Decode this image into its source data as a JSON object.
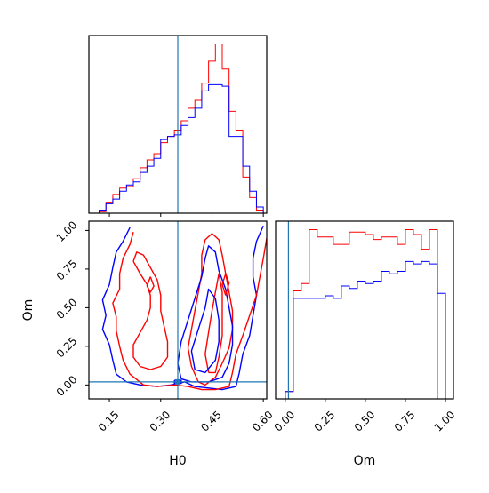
{
  "chart_data": {
    "type": "corner",
    "params": [
      "H0",
      "Om"
    ],
    "truths": {
      "H0": 0.35,
      "Om": 0.02
    },
    "colors": {
      "series_a": "#ff0000",
      "series_b": "#0000ff",
      "truth_line": "#1f77b4",
      "axes": "#000000"
    },
    "panels": [
      {
        "name": "hist-H0",
        "type": "histogram",
        "xlim": [
          0.09,
          0.61
        ],
        "bin_edges": [
          0.12,
          0.14,
          0.16,
          0.18,
          0.2,
          0.22,
          0.24,
          0.26,
          0.28,
          0.3,
          0.32,
          0.34,
          0.36,
          0.38,
          0.4,
          0.42,
          0.44,
          0.46,
          0.48,
          0.5,
          0.52,
          0.54,
          0.56,
          0.58,
          0.6
        ],
        "series": [
          {
            "color_key": "series_a",
            "counts": [
              1,
              7,
              12,
              16,
              17,
              22,
              29,
              34,
              38,
              45,
              49,
              53,
              59,
              67,
              72,
              83,
              97,
              108,
              92,
              65,
              53,
              23,
              10,
              2
            ]
          },
          {
            "color_key": "series_b",
            "counts": [
              2,
              6,
              9,
              14,
              18,
              20,
              26,
              30,
              35,
              47,
              49,
              50,
              56,
              61,
              67,
              78,
              82,
              82,
              81,
              49,
              49,
              30,
              14,
              4
            ]
          }
        ],
        "xticks": [
          0.15,
          0.3,
          0.45,
          0.6
        ]
      },
      {
        "name": "hist-Om",
        "type": "histogram",
        "xlim": [
          -0.06,
          1.05
        ],
        "bin_edges": [
          -0.05,
          0.0,
          0.05,
          0.1,
          0.15,
          0.2,
          0.25,
          0.3,
          0.35,
          0.4,
          0.45,
          0.5,
          0.55,
          0.6,
          0.65,
          0.7,
          0.75,
          0.8,
          0.85,
          0.9,
          0.95,
          1.0,
          1.05
        ],
        "series": [
          {
            "color_key": "series_a",
            "counts": [
              0,
              3,
              44,
              47,
              69,
              66,
              66,
              63,
              63,
              68,
              68,
              67,
              65,
              66,
              66,
              63,
              69,
              67,
              61,
              69,
              0,
              0
            ]
          },
          {
            "color_key": "series_b",
            "counts": [
              0,
              3,
              41,
              41,
              41,
              41,
              42,
              41,
              46,
              45,
              48,
              47,
              48,
              52,
              51,
              52,
              56,
              55,
              56,
              55,
              43,
              0
            ]
          }
        ],
        "xticks": [
          0.0,
          0.25,
          0.5,
          0.75,
          1.0
        ],
        "xlabel": "Om"
      },
      {
        "name": "contour-H0-Om",
        "type": "contour",
        "xlim": [
          0.09,
          0.61
        ],
        "ylim": [
          -0.09,
          1.06
        ],
        "xticks": [
          0.15,
          0.3,
          0.45,
          0.6
        ],
        "yticks": [
          0.0,
          0.25,
          0.5,
          0.75,
          1.0
        ],
        "xlabel": "H0",
        "ylabel": "Om",
        "contours": [
          {
            "color_key": "series_b",
            "points": [
              [
                0.21,
                1.02
              ],
              [
                0.19,
                0.93
              ],
              [
                0.17,
                0.86
              ],
              [
                0.16,
                0.76
              ],
              [
                0.15,
                0.65
              ],
              [
                0.13,
                0.55
              ],
              [
                0.14,
                0.45
              ],
              [
                0.13,
                0.36
              ],
              [
                0.15,
                0.26
              ],
              [
                0.16,
                0.16
              ],
              [
                0.17,
                0.07
              ],
              [
                0.2,
                0.02
              ],
              [
                0.24,
                0.0
              ],
              [
                0.29,
                -0.01
              ],
              [
                0.33,
                0.0
              ],
              [
                0.37,
                0.02
              ],
              [
                0.4,
                -0.01
              ],
              [
                0.44,
                -0.02
              ],
              [
                0.48,
                -0.03
              ],
              [
                0.52,
                -0.01
              ],
              [
                0.53,
                0.08
              ],
              [
                0.54,
                0.2
              ],
              [
                0.56,
                0.32
              ],
              [
                0.57,
                0.45
              ],
              [
                0.58,
                0.58
              ],
              [
                0.57,
                0.7
              ],
              [
                0.57,
                0.82
              ],
              [
                0.58,
                0.93
              ],
              [
                0.6,
                1.03
              ]
            ]
          },
          {
            "color_key": "series_a",
            "points": [
              [
                0.22,
                0.99
              ],
              [
                0.21,
                0.91
              ],
              [
                0.19,
                0.82
              ],
              [
                0.18,
                0.72
              ],
              [
                0.18,
                0.62
              ],
              [
                0.16,
                0.53
              ],
              [
                0.17,
                0.44
              ],
              [
                0.17,
                0.35
              ],
              [
                0.18,
                0.25
              ],
              [
                0.19,
                0.16
              ],
              [
                0.21,
                0.07
              ],
              [
                0.25,
                0.0
              ],
              [
                0.29,
                -0.01
              ],
              [
                0.34,
                0.0
              ],
              [
                0.38,
                -0.01
              ],
              [
                0.42,
                -0.03
              ],
              [
                0.46,
                -0.03
              ],
              [
                0.5,
                -0.01
              ],
              [
                0.51,
                0.08
              ],
              [
                0.52,
                0.2
              ],
              [
                0.54,
                0.32
              ],
              [
                0.56,
                0.45
              ],
              [
                0.58,
                0.58
              ],
              [
                0.59,
                0.7
              ],
              [
                0.6,
                0.82
              ],
              [
                0.61,
                0.95
              ]
            ]
          },
          {
            "color_key": "series_a",
            "points": [
              [
                0.22,
                0.8
              ],
              [
                0.24,
                0.72
              ],
              [
                0.26,
                0.65
              ],
              [
                0.27,
                0.58
              ],
              [
                0.27,
                0.5
              ],
              [
                0.26,
                0.42
              ],
              [
                0.24,
                0.34
              ],
              [
                0.22,
                0.26
              ],
              [
                0.22,
                0.18
              ],
              [
                0.24,
                0.12
              ],
              [
                0.27,
                0.1
              ],
              [
                0.3,
                0.12
              ],
              [
                0.32,
                0.18
              ],
              [
                0.32,
                0.28
              ],
              [
                0.31,
                0.38
              ],
              [
                0.3,
                0.48
              ],
              [
                0.3,
                0.58
              ],
              [
                0.29,
                0.68
              ],
              [
                0.27,
                0.76
              ],
              [
                0.25,
                0.84
              ],
              [
                0.23,
                0.86
              ],
              [
                0.22,
                0.8
              ]
            ]
          },
          {
            "color_key": "series_a",
            "points": [
              [
                0.41,
                0.02
              ],
              [
                0.39,
                0.12
              ],
              [
                0.38,
                0.24
              ],
              [
                0.39,
                0.36
              ],
              [
                0.4,
                0.48
              ],
              [
                0.41,
                0.6
              ],
              [
                0.42,
                0.72
              ],
              [
                0.42,
                0.84
              ],
              [
                0.43,
                0.94
              ],
              [
                0.45,
                0.98
              ],
              [
                0.47,
                0.94
              ],
              [
                0.48,
                0.84
              ],
              [
                0.49,
                0.72
              ],
              [
                0.5,
                0.6
              ],
              [
                0.51,
                0.48
              ],
              [
                0.51,
                0.36
              ],
              [
                0.5,
                0.24
              ],
              [
                0.48,
                0.14
              ],
              [
                0.46,
                0.05
              ],
              [
                0.43,
                0.0
              ],
              [
                0.41,
                0.02
              ]
            ]
          },
          {
            "color_key": "series_a",
            "points": [
              [
                0.44,
                0.08
              ],
              [
                0.43,
                0.2
              ],
              [
                0.44,
                0.34
              ],
              [
                0.45,
                0.48
              ],
              [
                0.46,
                0.6
              ],
              [
                0.47,
                0.72
              ],
              [
                0.48,
                0.6
              ],
              [
                0.48,
                0.46
              ],
              [
                0.48,
                0.32
              ],
              [
                0.47,
                0.18
              ],
              [
                0.46,
                0.08
              ],
              [
                0.44,
                0.08
              ]
            ]
          },
          {
            "color_key": "series_b",
            "points": [
              [
                0.36,
                0.04
              ],
              [
                0.35,
                0.14
              ],
              [
                0.36,
                0.28
              ],
              [
                0.38,
                0.42
              ],
              [
                0.4,
                0.56
              ],
              [
                0.42,
                0.7
              ],
              [
                0.43,
                0.82
              ],
              [
                0.44,
                0.9
              ],
              [
                0.46,
                0.86
              ],
              [
                0.47,
                0.74
              ],
              [
                0.49,
                0.62
              ],
              [
                0.5,
                0.5
              ],
              [
                0.51,
                0.38
              ],
              [
                0.51,
                0.26
              ],
              [
                0.5,
                0.14
              ],
              [
                0.48,
                0.05
              ],
              [
                0.44,
                0.02
              ],
              [
                0.39,
                0.02
              ],
              [
                0.36,
                0.04
              ]
            ]
          },
          {
            "color_key": "series_b",
            "points": [
              [
                0.4,
                0.1
              ],
              [
                0.39,
                0.22
              ],
              [
                0.41,
                0.36
              ],
              [
                0.43,
                0.5
              ],
              [
                0.44,
                0.62
              ],
              [
                0.46,
                0.56
              ],
              [
                0.47,
                0.42
              ],
              [
                0.47,
                0.28
              ],
              [
                0.46,
                0.16
              ],
              [
                0.43,
                0.08
              ],
              [
                0.4,
                0.1
              ]
            ]
          },
          {
            "color_key": "series_a",
            "points": [
              [
                0.27,
                0.7
              ],
              [
                0.26,
                0.64
              ],
              [
                0.27,
                0.6
              ],
              [
                0.28,
                0.64
              ],
              [
                0.27,
                0.7
              ]
            ]
          },
          {
            "color_key": "series_a",
            "points": [
              [
                0.49,
                0.58
              ],
              [
                0.48,
                0.65
              ],
              [
                0.49,
                0.72
              ],
              [
                0.5,
                0.66
              ],
              [
                0.49,
                0.58
              ]
            ]
          },
          {
            "color_key": "series_b",
            "points": [
              [
                0.34,
                0.03
              ],
              [
                0.34,
                0.01
              ],
              [
                0.36,
                0.01
              ],
              [
                0.36,
                0.03
              ],
              [
                0.34,
                0.03
              ]
            ]
          }
        ]
      }
    ],
    "title": ""
  }
}
